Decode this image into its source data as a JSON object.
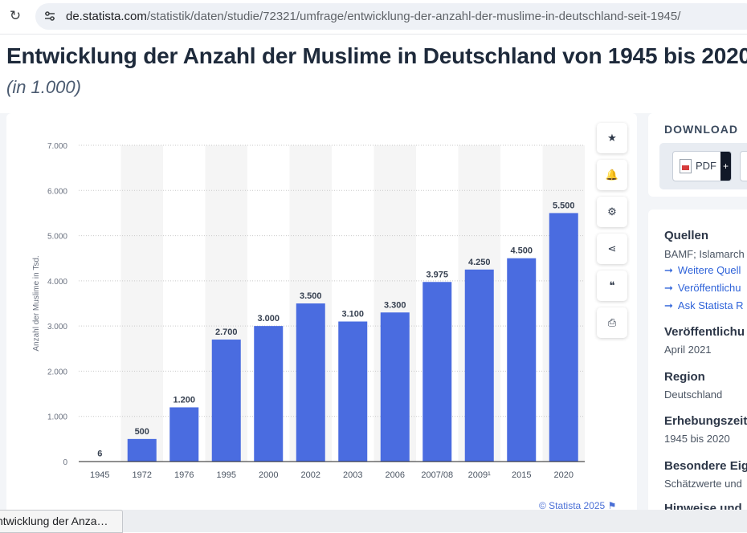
{
  "browser": {
    "url_host": "de.statista.com",
    "url_path": "/statistik/daten/studie/72321/umfrage/entwicklung-der-anzahl-der-muslime-in-deutschland-seit-1945/"
  },
  "page": {
    "title": "Entwicklung der Anzahl der Muslime in Deutschland von 1945 bis 2020",
    "subtitle": "(in 1.000)"
  },
  "chart_data": {
    "type": "bar",
    "categories": [
      "1945",
      "1972",
      "1976",
      "1995",
      "2000",
      "2002",
      "2003",
      "2006",
      "2007/08",
      "2009¹",
      "2015",
      "2020"
    ],
    "values": [
      6,
      500,
      1200,
      2700,
      3000,
      3500,
      3100,
      3300,
      3975,
      4250,
      4500,
      5500
    ],
    "value_labels": [
      "6",
      "500",
      "1.200",
      "2.700",
      "3.000",
      "3.500",
      "3.100",
      "3.300",
      "3.975",
      "4.250",
      "4.500",
      "5.500"
    ],
    "y_ticks": [
      0,
      1000,
      2000,
      3000,
      4000,
      5000,
      6000,
      7000
    ],
    "y_tick_labels": [
      "0",
      "1.000",
      "2.000",
      "3.000",
      "4.000",
      "5.000",
      "6.000",
      "7.000"
    ],
    "ylim": [
      0,
      7000
    ],
    "ylabel": "Anzahl der Muslime in Tsd.",
    "xlabel": "",
    "grid": true,
    "bar_color": "#4a6ce0",
    "credit": "© Statista 2025"
  },
  "toolbar": {
    "tools": [
      {
        "name": "favorite-button",
        "icon": "star-icon",
        "glyph": "★"
      },
      {
        "name": "notification-button",
        "icon": "bell-icon",
        "glyph": "🔔"
      },
      {
        "name": "settings-button",
        "icon": "gear-icon",
        "glyph": "⚙"
      },
      {
        "name": "share-button",
        "icon": "share-icon",
        "glyph": "⋖"
      },
      {
        "name": "cite-button",
        "icon": "quote-icon",
        "glyph": "❝"
      },
      {
        "name": "print-button",
        "icon": "printer-icon",
        "glyph": "⎙"
      }
    ]
  },
  "download": {
    "title": "DOWNLOAD",
    "pdf_label": "PDF",
    "pdf_plus": "+"
  },
  "info": {
    "sources_title": "Quellen",
    "sources_text": "BAMF; Islamarch",
    "links": [
      "Weitere Quell",
      "Veröffentlichu",
      "Ask Statista R"
    ],
    "published_title": "Veröffentlichu",
    "published_value": "April 2021",
    "region_title": "Region",
    "region_value": "Deutschland",
    "survey_title": "Erhebungszeit",
    "survey_value": "1945 bis 2020",
    "special_title": "Besondere Eig",
    "special_value": "Schätzwerte und",
    "notes_title": "Hinweise und"
  },
  "status": {
    "tab_text": "ntwicklung der Anza…"
  }
}
